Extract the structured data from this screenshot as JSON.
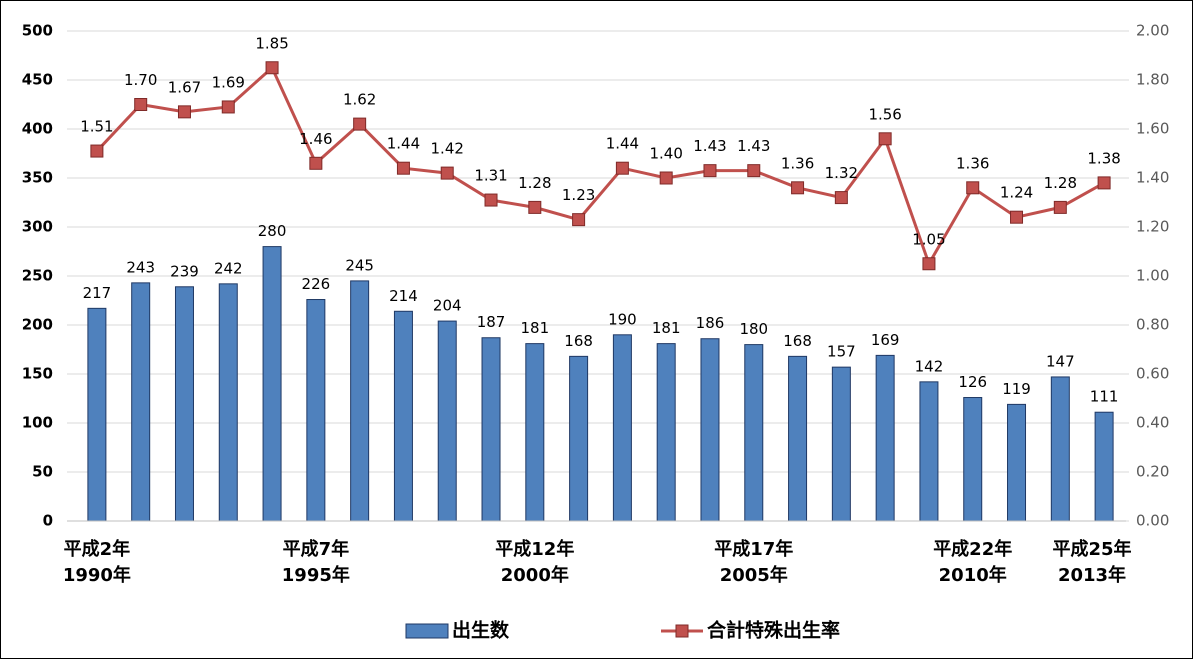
{
  "chart_data": {
    "type": "bar_line",
    "categories": [
      "平成2年\n1990年",
      null,
      null,
      null,
      null,
      "平成7年\n1995年",
      null,
      null,
      null,
      null,
      "平成12年\n2000年",
      null,
      null,
      null,
      null,
      "平成17年\n2005年",
      null,
      null,
      null,
      null,
      "平成22年\n2010年",
      null,
      null,
      "平成25年\n2013年"
    ],
    "series": [
      {
        "name": "出生数",
        "type": "bar",
        "color": "#4f81bd",
        "values": [
          217,
          243,
          239,
          242,
          280,
          226,
          245,
          214,
          204,
          187,
          181,
          168,
          190,
          181,
          186,
          180,
          168,
          157,
          169,
          142,
          126,
          119,
          147,
          111
        ]
      },
      {
        "name": "合計特殊出生率",
        "type": "line",
        "axis": "y2",
        "color": "#c0504d",
        "values": [
          1.51,
          1.7,
          1.67,
          1.69,
          1.85,
          1.46,
          1.62,
          1.44,
          1.42,
          1.31,
          1.28,
          1.23,
          1.44,
          1.4,
          1.43,
          1.43,
          1.36,
          1.32,
          1.56,
          1.05,
          1.36,
          1.24,
          1.28,
          1.38
        ],
        "value_labels": [
          "1.51",
          "1.70",
          "1.67",
          "1.69",
          "1.85",
          "1.46",
          "1.62",
          "1.44",
          "1.42",
          "1.31",
          "1.28",
          "1.23",
          "1.44",
          "1.40",
          "1.43",
          "1.43",
          "1.36",
          "1.32",
          "1.56",
          "1.05",
          "1.36",
          "1.24",
          "1.28",
          "1.38"
        ]
      }
    ],
    "ylim": [
      0,
      500
    ],
    "yticks": [
      0,
      50,
      100,
      150,
      200,
      250,
      300,
      350,
      400,
      450,
      500
    ],
    "y2lim": [
      0,
      2
    ],
    "y2ticks": [
      {
        "value": 0,
        "label": "0.00"
      },
      {
        "value": 0.2,
        "label": "0.20"
      },
      {
        "value": 0.4,
        "label": "0.40"
      },
      {
        "value": 0.6,
        "label": "0.60"
      },
      {
        "value": 0.8,
        "label": "0.80"
      },
      {
        "value": 1,
        "label": "1.00"
      },
      {
        "value": 1.2,
        "label": "1.20"
      },
      {
        "value": 1.4,
        "label": "1.40"
      },
      {
        "value": 1.6,
        "label": "1.60"
      },
      {
        "value": 1.8,
        "label": "1.80"
      },
      {
        "value": 2,
        "label": "2.00"
      }
    ],
    "grid": true
  }
}
